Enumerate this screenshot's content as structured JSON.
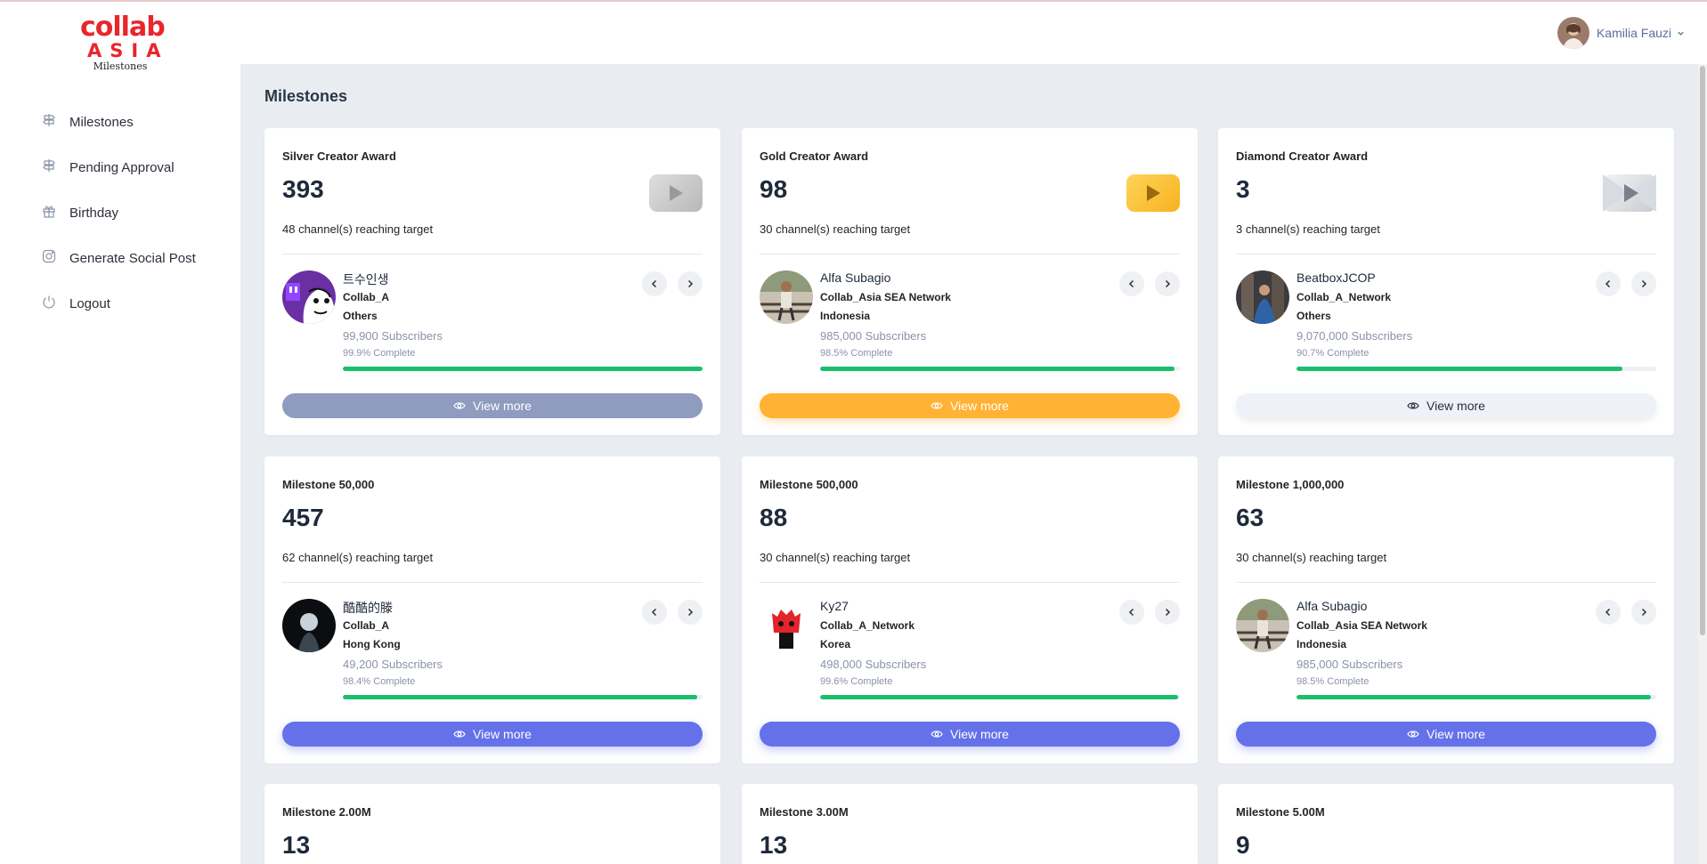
{
  "brand": {
    "logo_line1": "collab",
    "logo_line2": "ASIA",
    "logo_sub": "Milestones"
  },
  "sidebar": {
    "items": [
      {
        "label": "Milestones",
        "icon": "signpost-icon"
      },
      {
        "label": "Pending Approval",
        "icon": "signpost-icon"
      },
      {
        "label": "Birthday",
        "icon": "gift-icon"
      },
      {
        "label": "Generate Social Post",
        "icon": "instagram-icon"
      },
      {
        "label": "Logout",
        "icon": "power-icon"
      }
    ]
  },
  "header": {
    "user_name": "Kamilia Fauzi"
  },
  "main": {
    "page_title": "Milestones"
  },
  "colors": {
    "accent": "#6571e9",
    "gold": "#ffb233",
    "silver": "#8f9bbf",
    "progress": "#1bbf6b",
    "brand_red": "#e8262c"
  },
  "cards": [
    {
      "title": "Silver Creator Award",
      "count": "393",
      "reach": "48 channel(s) reaching target",
      "badge": "silver-play-button-icon",
      "channel": {
        "name": "트수인생",
        "network": "Collab_A",
        "region": "Others",
        "subs": "99,900 Subscribers",
        "pct_text": "99.9% Complete",
        "progress": 0.999
      },
      "button": "View more",
      "style": "silver"
    },
    {
      "title": "Gold Creator Award",
      "count": "98",
      "reach": "30 channel(s) reaching target",
      "badge": "gold-play-button-icon",
      "channel": {
        "name": "Alfa Subagio",
        "network": "Collab_Asia SEA Network",
        "region": "Indonesia",
        "subs": "985,000 Subscribers",
        "pct_text": "98.5% Complete",
        "progress": 0.985
      },
      "button": "View more",
      "style": "gold"
    },
    {
      "title": "Diamond Creator Award",
      "count": "3",
      "reach": "3 channel(s) reaching target",
      "badge": "diamond-play-button-icon",
      "channel": {
        "name": "BeatboxJCOP",
        "network": "Collab_A_Network",
        "region": "Others",
        "subs": "9,070,000 Subscribers",
        "pct_text": "90.7% Complete",
        "progress": 0.907
      },
      "button": "View more",
      "style": "diamond"
    },
    {
      "title": "Milestone 50,000",
      "count": "457",
      "reach": "62 channel(s) reaching target",
      "channel": {
        "name": "酷酷的滕",
        "network": "Collab_A",
        "region": "Hong Kong",
        "subs": "49,200 Subscribers",
        "pct_text": "98.4% Complete",
        "progress": 0.984
      },
      "button": "View more",
      "style": "blue"
    },
    {
      "title": "Milestone 500,000",
      "count": "88",
      "reach": "30 channel(s) reaching target",
      "channel": {
        "name": "Ky27",
        "network": "Collab_A_Network",
        "region": "Korea",
        "subs": "498,000 Subscribers",
        "pct_text": "99.6% Complete",
        "progress": 0.996
      },
      "button": "View more",
      "style": "blue"
    },
    {
      "title": "Milestone 1,000,000",
      "count": "63",
      "reach": "30 channel(s) reaching target",
      "channel": {
        "name": "Alfa Subagio",
        "network": "Collab_Asia SEA Network",
        "region": "Indonesia",
        "subs": "985,000 Subscribers",
        "pct_text": "98.5% Complete",
        "progress": 0.985
      },
      "button": "View more",
      "style": "blue"
    },
    {
      "title": "Milestone 2.00M",
      "count": "13"
    },
    {
      "title": "Milestone 3.00M",
      "count": "13"
    },
    {
      "title": "Milestone 5.00M",
      "count": "9"
    }
  ]
}
